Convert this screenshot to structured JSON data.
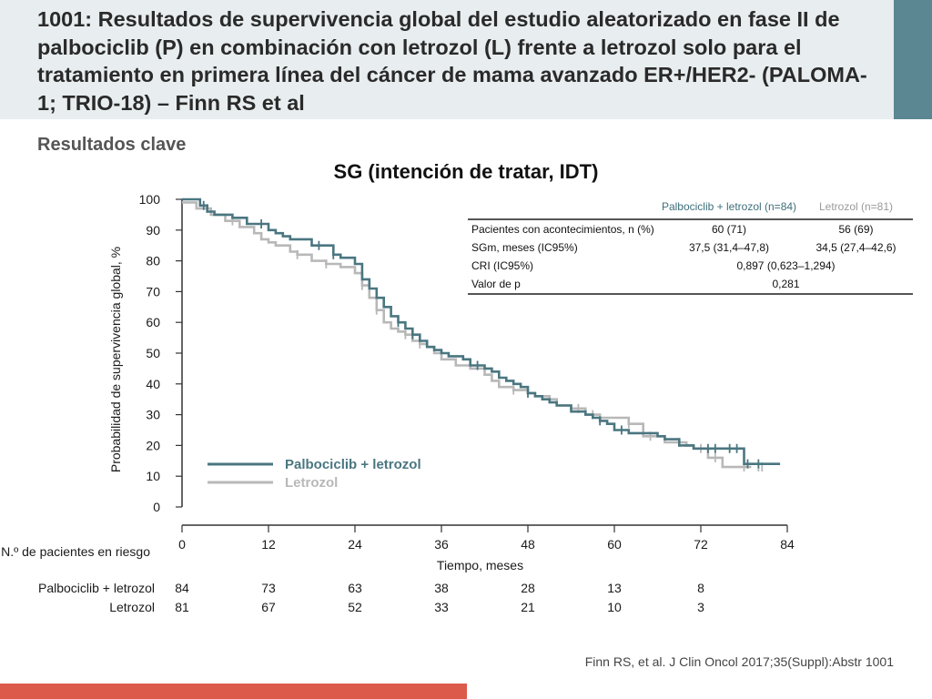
{
  "header": {
    "title": "1001: Resultados de supervivencia global del estudio aleatorizado en fase II de palbociclib (P) en combinación con letrozol (L) frente a letrozol solo para el tratamiento en primera línea del cáncer de mama avanzado ER+/HER2- (PALOMA-1; TRIO-18) – Finn RS et al"
  },
  "subtitle": "Resultados clave",
  "colors": {
    "palbo": "#4a7680",
    "letrozol": "#b8b8b8",
    "accent": "#5a8791",
    "footer": "#dc5a4a",
    "header_bg": "#e8edef"
  },
  "chart_data": {
    "type": "line",
    "title": "SG (intención de tratar, IDT)",
    "xlabel": "Tiempo, meses",
    "ylabel": "Probabilidad de supervivencia global, %",
    "xlim": [
      0,
      84
    ],
    "ylim": [
      0,
      100
    ],
    "xticks": [
      "0",
      "12",
      "24",
      "36",
      "48",
      "60",
      "72",
      "84"
    ],
    "yticks": [
      "0",
      "10",
      "20",
      "30",
      "40",
      "50",
      "60",
      "70",
      "80",
      "90",
      "100"
    ],
    "legend_position": "bottom-left",
    "series": [
      {
        "name": "Palbociclib + letrozol",
        "color": "#4a7680",
        "x": [
          0,
          2.5,
          3.5,
          4.5,
          7,
          9,
          12,
          13,
          14,
          15,
          18,
          21,
          22,
          24,
          25,
          26,
          27,
          28,
          29,
          30,
          31,
          32,
          33,
          34,
          35,
          36,
          37,
          39,
          40,
          42,
          43,
          44,
          45,
          46,
          47,
          48,
          49,
          50,
          51,
          52,
          54,
          56,
          57,
          58,
          59,
          60,
          62,
          66,
          67,
          69,
          71,
          78,
          83
        ],
        "y": [
          100,
          98,
          96,
          95,
          94,
          92,
          90,
          89,
          88,
          87,
          85,
          82,
          81,
          79,
          74,
          71,
          68,
          65,
          62,
          60,
          58,
          56,
          54,
          52,
          51,
          50,
          49,
          48,
          46,
          45,
          44,
          42,
          41,
          40,
          39,
          37,
          36,
          35,
          34,
          33,
          31,
          30,
          29,
          28,
          27,
          25,
          24,
          23,
          22,
          20,
          19,
          14,
          14
        ]
      },
      {
        "name": "Letrozol",
        "color": "#b8b8b8",
        "x": [
          0,
          2,
          4,
          6,
          8,
          10,
          11,
          12,
          13,
          15,
          16,
          18,
          20,
          22,
          24,
          25,
          26,
          27,
          28,
          29,
          30,
          31,
          32,
          33,
          34,
          35,
          36,
          38,
          40,
          42,
          43,
          44,
          46,
          48,
          49,
          51,
          52,
          54,
          56,
          58,
          62,
          64,
          67,
          70,
          71,
          73,
          75,
          79
        ],
        "y": [
          99,
          97,
          95,
          93,
          91,
          89,
          87,
          86,
          85,
          83,
          82,
          80,
          79,
          78,
          76,
          72,
          68,
          64,
          60,
          58,
          57,
          56,
          54,
          53,
          52,
          50,
          48,
          46,
          45,
          43,
          41,
          39,
          38,
          37,
          36,
          35,
          33,
          32,
          30,
          29,
          27,
          23,
          21,
          20,
          19,
          16,
          13,
          13
        ]
      }
    ],
    "censor_marks": {
      "palbo_x": [
        3,
        11,
        19,
        21,
        30,
        32,
        41,
        48,
        58,
        61,
        73,
        74,
        76,
        77,
        78.5,
        80
      ],
      "letrozol_x": [
        3.5,
        7,
        16,
        20,
        25,
        27,
        31,
        33,
        46,
        55,
        57,
        62,
        65,
        69,
        72,
        74,
        78,
        80,
        80.5
      ]
    },
    "risk_table": {
      "header": "N.º de pacientes en riesgo",
      "time_points": [
        0,
        12,
        24,
        36,
        48,
        60,
        72
      ],
      "rows": [
        {
          "label": "Palbociclib + letrozol",
          "values": [
            "84",
            "73",
            "63",
            "38",
            "28",
            "13",
            "8"
          ]
        },
        {
          "label": "Letrozol",
          "values": [
            "81",
            "67",
            "52",
            "33",
            "21",
            "10",
            "3"
          ]
        }
      ]
    }
  },
  "stats_table": {
    "col_palbo": "Palbociclib + letrozol (n=84)",
    "col_letrozol": "Letrozol (n=81)",
    "rows": [
      {
        "label": "Pacientes con acontecimientos, n (%)",
        "palbo": "60 (71)",
        "letrozol": "56 (69)"
      },
      {
        "label": "SGm, meses (IC95%)",
        "palbo": "37,5 (31,4–47,8)",
        "letrozol": "34,5 (27,4–42,6)"
      },
      {
        "label": "CRI (IC95%)",
        "combined": "0,897 (0,623–1,294)"
      },
      {
        "label": "Valor de p",
        "combined": "0,281"
      }
    ]
  },
  "citation": "Finn RS, et al. J Clin Oncol 2017;35(Suppl):Abstr 1001"
}
